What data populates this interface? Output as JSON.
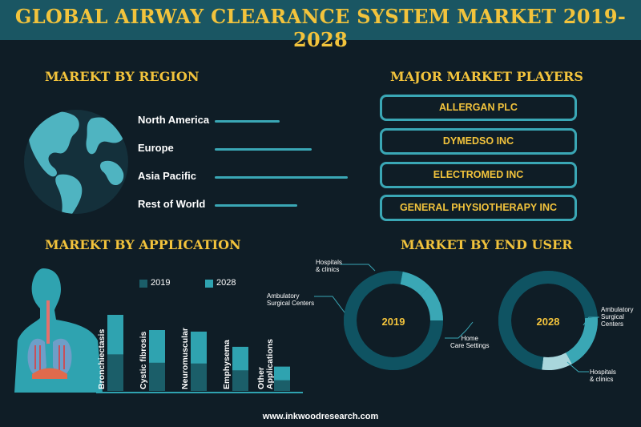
{
  "title": "GLOBAL AIRWAY CLEARANCE SYSTEM MARKET 2019-2028",
  "sections": {
    "region": "MAREKT BY REGION",
    "players": "MAJOR MARKET PLAYERS",
    "application": "MAREKT BY APPLICATION",
    "end_user": "MARKET BY END USER"
  },
  "players": [
    "ALLERGAN PLC",
    "DYMEDSO INC",
    "ELECTROMED INC",
    "GENERAL PHYSIOTHERAPY INC"
  ],
  "footer": "www.inkwoodresearch.com",
  "colors": {
    "background": "#0f1d26",
    "banner": "#1a5663",
    "accent_yellow": "#f2c33c",
    "teal": "#3aa7b5",
    "bar_2019": "#1b5e69",
    "bar_2028": "#2fa3b0",
    "donut_dark": "#0f5362",
    "donut_light": "#3aa7b5",
    "donut_lightest": "#a9d6dc"
  },
  "chart_data": [
    {
      "type": "bar",
      "orientation": "horizontal",
      "categories": [
        "North America",
        "Europe",
        "Asia Pacific",
        "Rest of World"
      ],
      "values": [
        0.49,
        0.73,
        1.0,
        0.62
      ],
      "value_scale": "relative",
      "grid": false
    },
    {
      "type": "bar",
      "stacked": true,
      "categories": [
        "Bronchiectasis",
        "Cystic fibrosis",
        "Neuromuscular",
        "Emphysema",
        "Other Applications"
      ],
      "series": [
        {
          "name": "2019",
          "values": [
            0.48,
            0.37,
            0.36,
            0.27,
            0.14
          ]
        },
        {
          "name": "2028",
          "values": [
            0.52,
            0.43,
            0.42,
            0.31,
            0.18
          ]
        }
      ],
      "value_scale": "relative",
      "legend": "top",
      "grid": false
    },
    {
      "type": "pie",
      "style": "donut",
      "center_label": "2019",
      "segments": [
        {
          "label": "Hospitals & clinics",
          "share": 0.1,
          "color": "#3aa7b5"
        },
        {
          "label": "Ambulatory Surgical Centers",
          "share": 0.12,
          "color": "#3aa7b5"
        },
        {
          "label": "Home Care Settings",
          "share": 0.78,
          "color": "#0f5362"
        }
      ]
    },
    {
      "type": "pie",
      "style": "donut",
      "center_label": "2028",
      "segments": [
        {
          "label": "Ambulatory Surgical Centers",
          "share": 0.18,
          "color": "#3aa7b5"
        },
        {
          "label": "Hospitals & clinics",
          "share": 0.1,
          "color": "#a9d6dc"
        },
        {
          "label": "Home Care Settings",
          "share": 0.72,
          "color": "#0f5362"
        }
      ]
    }
  ],
  "annotations": {
    "hospitals": "Hospitals\n& clinics",
    "ambulatory": "Ambulatory\nSurgical Centers",
    "home_care": "Home\nCare Settings",
    "ambulatory_right": "Ambulatory\nSurgical\nCenters",
    "hospitals_right": "Hospitals\n& clinics"
  }
}
